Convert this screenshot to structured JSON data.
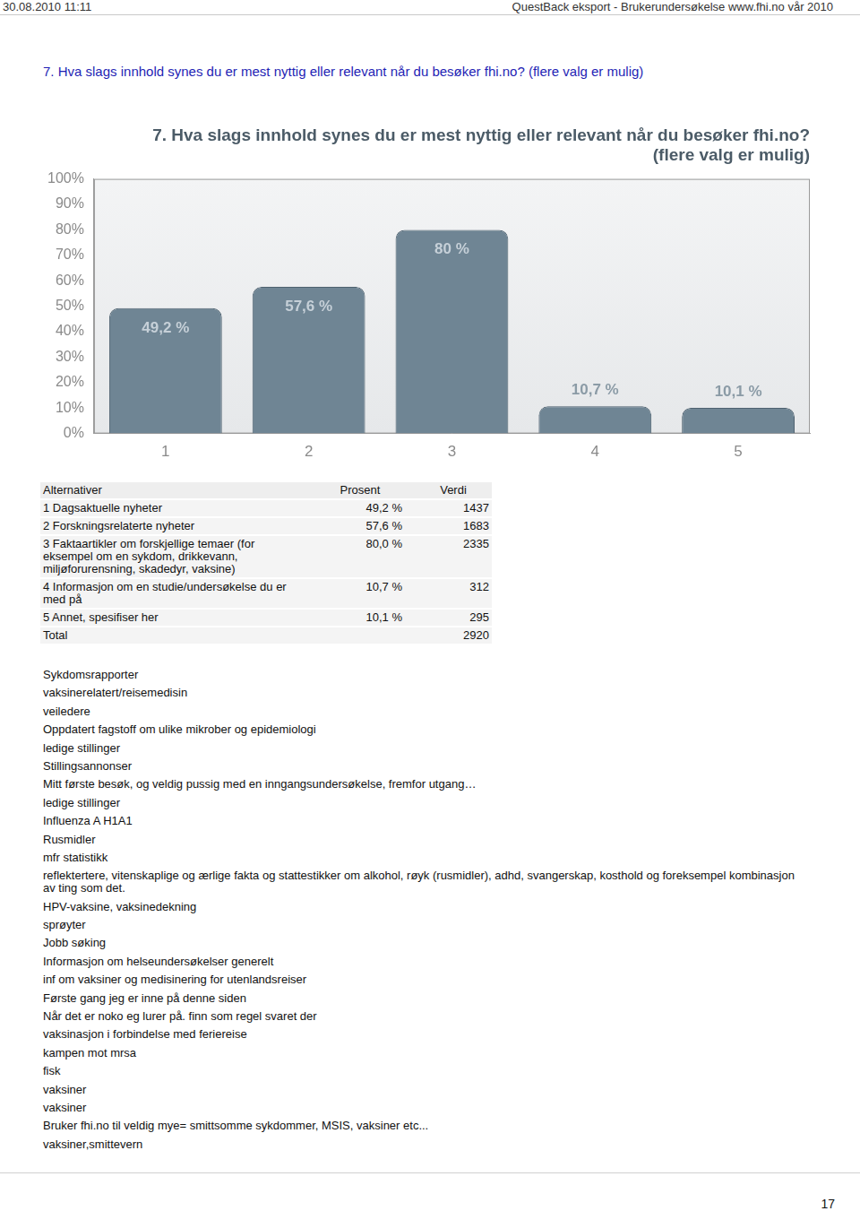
{
  "header": {
    "left": "30.08.2010 11:11",
    "right": "QuestBack eksport - Brukerundersøkelse www.fhi.no vår 2010"
  },
  "question": "7. Hva slags innhold synes du er mest nyttig eller relevant når du besøker fhi.no? (flere valg er mulig)",
  "chart_data": {
    "type": "bar",
    "title": [
      "7. Hva slags innhold synes du er mest nyttig eller relevant når du besøker fhi.no?",
      "(flere valg er mulig)"
    ],
    "categories": [
      "1",
      "2",
      "3",
      "4",
      "5"
    ],
    "values": [
      49.2,
      57.6,
      80,
      10.7,
      10.1
    ],
    "value_labels": [
      "49,2 %",
      "57,6 %",
      "80 %",
      "10,7 %",
      "10,1 %"
    ],
    "data_labels": true,
    "color": "#6f8594",
    "ylim": [
      0,
      100
    ],
    "yticks": [
      {
        "value": 0,
        "label": "0%"
      },
      {
        "value": 10,
        "label": "10%"
      },
      {
        "value": 20,
        "label": "20%"
      },
      {
        "value": 30,
        "label": "30%"
      },
      {
        "value": 40,
        "label": "40%"
      },
      {
        "value": 50,
        "label": "50%"
      },
      {
        "value": 60,
        "label": "60%"
      },
      {
        "value": 70,
        "label": "70%"
      },
      {
        "value": 80,
        "label": "80%"
      },
      {
        "value": 90,
        "label": "90%"
      },
      {
        "value": 100,
        "label": "100%"
      }
    ],
    "grid": false
  },
  "table": {
    "header": [
      "Alternativer",
      "Prosent",
      "Verdi"
    ],
    "rows": [
      [
        "1 Dagsaktuelle nyheter",
        "49,2 %",
        "1437"
      ],
      [
        "2 Forskningsrelaterte nyheter",
        "57,6 %",
        "1683"
      ],
      [
        "3 Faktaartikler om forskjellige temaer (for eksempel om en sykdom, drikkevann, miljøforurensning, skadedyr, vaksine)",
        "80,0 %",
        "2335"
      ],
      [
        "4 Informasjon om en studie/undersøkelse du er med på",
        "10,7 %",
        "312"
      ],
      [
        "5 Annet, spesifiser her",
        "10,1 %",
        "295"
      ],
      [
        "Total",
        "",
        "2920"
      ]
    ]
  },
  "answers": [
    "Sykdomsrapporter",
    "vaksinerelatert/reisemedisin",
    "veiledere",
    "Oppdatert fagstoff om ulike mikrober og epidemiologi",
    "ledige stillinger",
    "Stillingsannonser",
    "Mitt første besøk, og veldig pussig med en inngangsundersøkelse, fremfor utgang…",
    "ledige stillinger",
    "Influenza A H1A1",
    "Rusmidler",
    "mfr statistikk",
    "reflektertere, vitenskaplige og ærlige fakta og stattestikker om alkohol, røyk (rusmidler), adhd, svangerskap, kosthold og foreksempel kombinasjon av ting som det.",
    "HPV-vaksine, vaksinedekning",
    "sprøyter",
    "Jobb søking",
    "Informasjon om helseundersøkelser generelt",
    "inf om vaksiner og medisinering for utenlandsreiser",
    "Første gang jeg er inne på denne siden",
    "Når det er noko eg lurer på. finn som regel svaret der",
    "vaksinasjon i forbindelse med feriereise",
    "kampen mot mrsa",
    "fisk",
    "vaksiner",
    "vaksiner",
    "Bruker fhi.no til veldig mye= smittsomme sykdommer, MSIS, vaksiner etc...",
    "vaksiner,smittevern"
  ],
  "page_number": "17"
}
